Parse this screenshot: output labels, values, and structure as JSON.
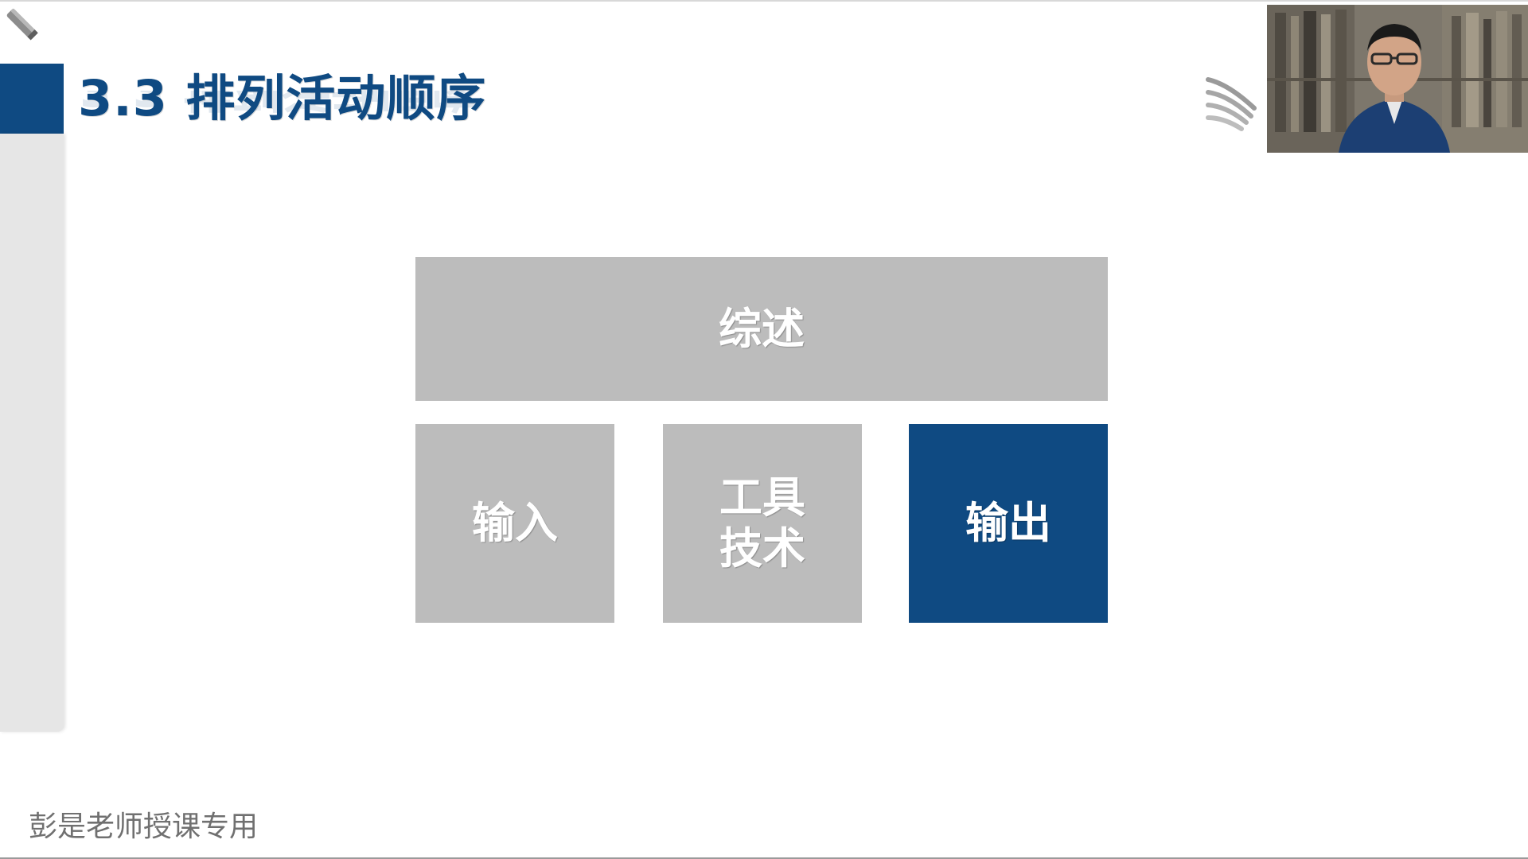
{
  "slide": {
    "title": "3.3 排列活动顺序",
    "footer": "彭是老师授课专用"
  },
  "boxes": {
    "overview": "综述",
    "inputs": "输入",
    "tools_line1": "工具",
    "tools_line2": "技术",
    "outputs": "输出"
  },
  "colors": {
    "brand_blue": "#0f4a82",
    "box_gray": "#bcbcbc",
    "side_panel": "#e6e6e6"
  },
  "icons": {
    "pen": "pen-icon",
    "logo": "logo-mark-icon"
  }
}
